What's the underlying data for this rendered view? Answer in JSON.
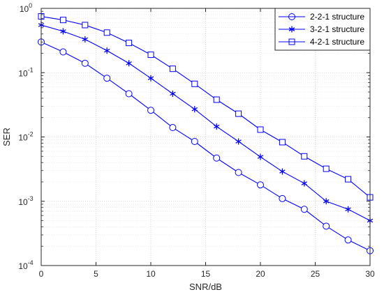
{
  "chart_data": {
    "type": "line",
    "title": "",
    "xlabel": "SNR/dB",
    "ylabel": "SER",
    "xlim": [
      0,
      30
    ],
    "ylim": [
      0.0001,
      1
    ],
    "y_scale": "log",
    "x_ticks": [
      "0",
      "5",
      "10",
      "15",
      "20",
      "25",
      "30"
    ],
    "y_ticks": [
      {
        "base": "10",
        "exp": "-4",
        "value": 0.0001
      },
      {
        "base": "10",
        "exp": "-3",
        "value": 0.001
      },
      {
        "base": "10",
        "exp": "-2",
        "value": 0.01
      },
      {
        "base": "10",
        "exp": "-1",
        "value": 0.1
      },
      {
        "base": "10",
        "exp": "0",
        "value": 1
      }
    ],
    "grid": true,
    "legend_position": "top-right",
    "x": [
      0,
      2,
      4,
      6,
      8,
      10,
      12,
      14,
      16,
      18,
      20,
      22,
      24,
      26,
      28,
      30
    ],
    "series": [
      {
        "name": "2-2-1 structure",
        "marker": "circle",
        "color": "#0000ff",
        "values": [
          0.3,
          0.21,
          0.14,
          0.082,
          0.047,
          0.026,
          0.014,
          0.0085,
          0.0047,
          0.0028,
          0.0018,
          0.0011,
          0.00075,
          0.00041,
          0.00025,
          0.00017
        ]
      },
      {
        "name": "3-2-1 structure",
        "marker": "asterisk",
        "color": "#0000ff",
        "values": [
          0.55,
          0.44,
          0.33,
          0.22,
          0.14,
          0.082,
          0.047,
          0.027,
          0.0145,
          0.0085,
          0.0049,
          0.0029,
          0.0019,
          0.001,
          0.00075,
          0.0005
        ]
      },
      {
        "name": "4-2-1 structure",
        "marker": "square",
        "color": "#0000ff",
        "values": [
          0.75,
          0.66,
          0.55,
          0.42,
          0.29,
          0.19,
          0.115,
          0.067,
          0.038,
          0.023,
          0.013,
          0.0083,
          0.005,
          0.0032,
          0.0022,
          0.00115
        ]
      }
    ]
  }
}
